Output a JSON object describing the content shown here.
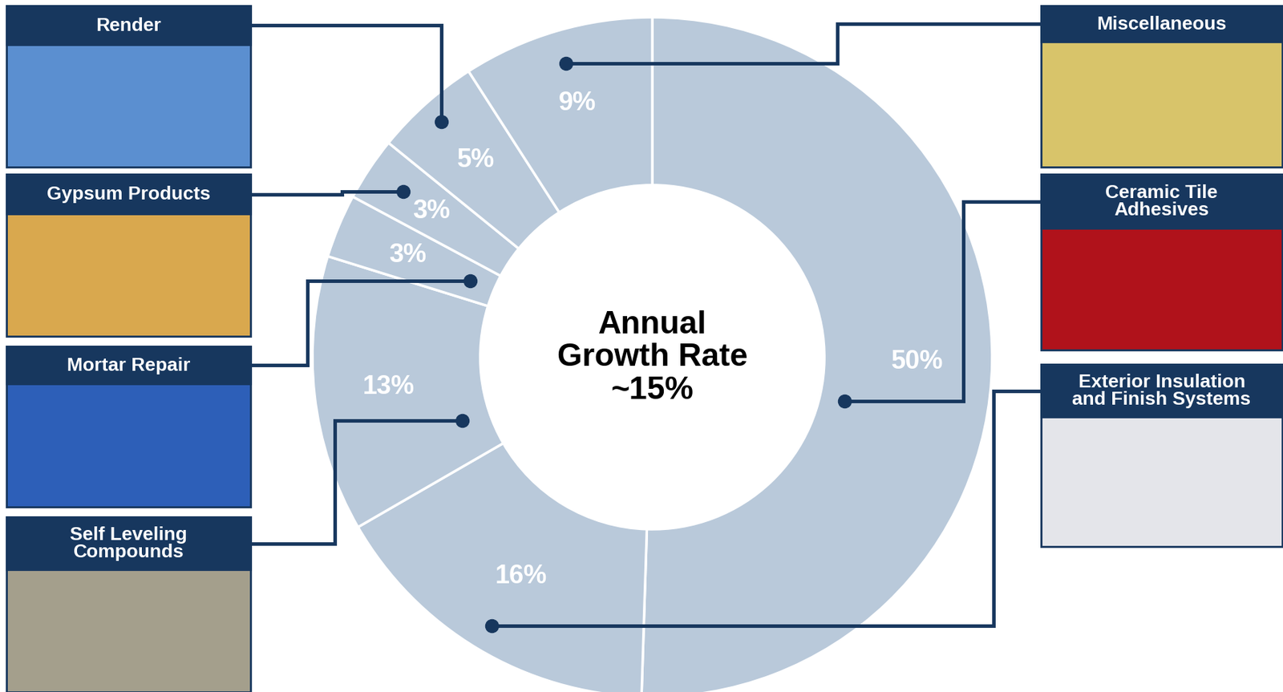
{
  "chart_data": {
    "type": "donut",
    "center_text": "Annual\nGrowth Rate\n~15%",
    "categories": [
      "Ceramic Tile Adhesives",
      "Exterior Insulation and Finish Systems",
      "Self Leveling Compounds",
      "Mortar Repair",
      "Gypsum Products",
      "Render",
      "Miscellaneous"
    ],
    "values": [
      50,
      16,
      13,
      3,
      3,
      5,
      9
    ],
    "value_labels": [
      "50%",
      "16%",
      "13%",
      "3%",
      "3%",
      "5%",
      "9%"
    ],
    "data_labels": true,
    "color": "#b9c9da"
  }
}
